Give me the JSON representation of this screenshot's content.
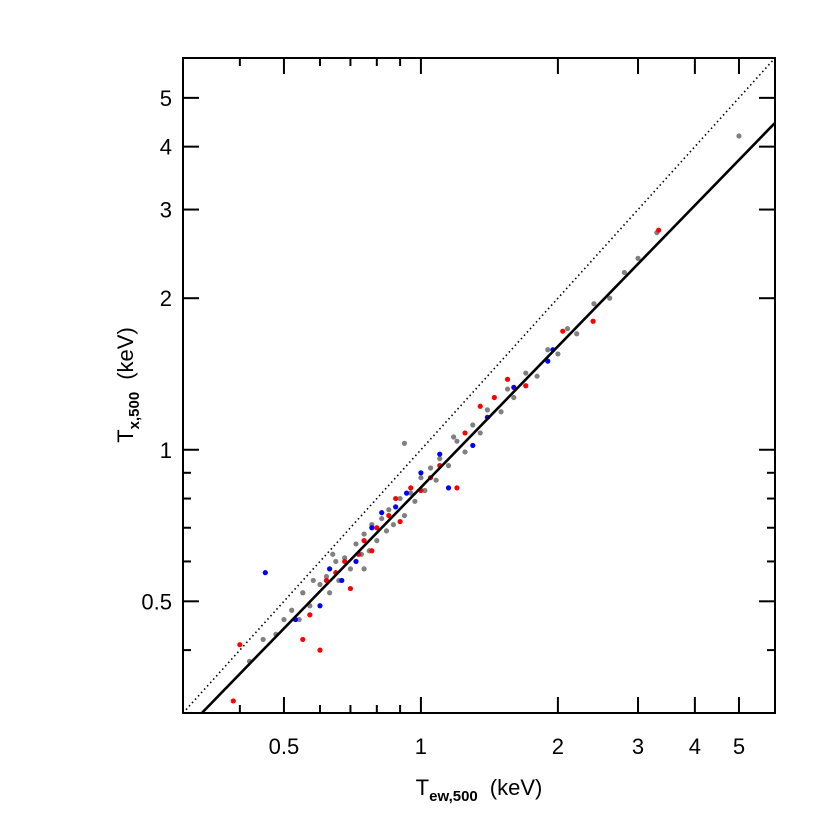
{
  "chart_data": {
    "type": "scatter",
    "xlabel": {
      "main": "T",
      "sub": "ew,500",
      "unit": "(keV)"
    },
    "ylabel": {
      "main": "T",
      "sub": "x,500",
      "unit": "(keV)"
    },
    "xscale": "log",
    "yscale": "log",
    "xlim": [
      0.3,
      6
    ],
    "ylim": [
      0.3,
      6
    ],
    "xticks": [
      0.5,
      1,
      2,
      3,
      4,
      5
    ],
    "yticks": [
      0.5,
      1,
      2,
      3,
      4,
      5
    ],
    "minor_ticks": [
      0.4,
      0.6,
      0.7,
      0.8,
      0.9
    ],
    "lines": [
      {
        "x": [
          0.3,
          6
        ],
        "y": [
          0.3,
          6
        ],
        "style": "dotted",
        "color": "#000000"
      },
      {
        "x": [
          0.33,
          6
        ],
        "y": [
          0.3,
          4.46
        ],
        "style": "solid",
        "color": "#000000"
      }
    ],
    "series": [
      {
        "color": "#808080",
        "x": [
          0.42,
          0.45,
          0.48,
          0.5,
          0.52,
          0.54,
          0.55,
          0.57,
          0.58,
          0.6,
          0.62,
          0.63,
          0.65,
          0.66,
          0.68,
          0.7,
          0.72,
          0.74,
          0.75,
          0.77,
          0.78,
          0.8,
          0.82,
          0.84,
          0.85,
          0.87,
          0.9,
          0.92,
          0.95,
          0.97,
          1.0,
          1.02,
          1.05,
          1.08,
          1.1,
          1.15,
          1.2,
          1.25,
          1.3,
          1.35,
          1.4,
          1.5,
          1.55,
          1.6,
          1.7,
          1.8,
          1.9,
          2.0,
          2.1,
          2.2,
          2.4,
          2.6,
          2.8,
          3.0,
          3.3,
          5.0,
          0.92,
          0.75,
          1.18,
          0.64
        ],
        "values": [
          0.38,
          0.42,
          0.43,
          0.46,
          0.48,
          0.46,
          0.52,
          0.49,
          0.55,
          0.54,
          0.56,
          0.52,
          0.6,
          0.55,
          0.61,
          0.58,
          0.65,
          0.62,
          0.68,
          0.63,
          0.71,
          0.66,
          0.73,
          0.69,
          0.76,
          0.71,
          0.8,
          1.03,
          0.82,
          0.79,
          0.88,
          0.83,
          0.92,
          0.87,
          0.96,
          0.93,
          1.04,
          0.99,
          1.12,
          1.08,
          1.2,
          1.19,
          1.32,
          1.27,
          1.42,
          1.4,
          1.58,
          1.55,
          1.74,
          1.7,
          1.95,
          2.0,
          2.25,
          2.4,
          2.7,
          4.2,
          0.74,
          0.58,
          1.06,
          0.62
        ]
      },
      {
        "color": "#ff0000",
        "x": [
          0.387,
          0.4,
          0.55,
          0.6,
          0.57,
          0.62,
          0.65,
          0.68,
          0.7,
          0.73,
          0.75,
          0.78,
          0.8,
          0.85,
          0.88,
          0.9,
          0.95,
          1.0,
          1.05,
          1.1,
          1.2,
          1.25,
          1.35,
          1.45,
          1.55,
          1.7,
          2.05,
          2.39,
          3.33
        ],
        "values": [
          0.317,
          0.41,
          0.42,
          0.4,
          0.47,
          0.55,
          0.57,
          0.6,
          0.53,
          0.62,
          0.66,
          0.63,
          0.7,
          0.74,
          0.8,
          0.72,
          0.84,
          0.83,
          0.88,
          0.93,
          0.84,
          1.08,
          1.22,
          1.27,
          1.38,
          1.34,
          1.72,
          1.8,
          2.73
        ]
      },
      {
        "color": "#0000ff",
        "x": [
          0.455,
          0.53,
          0.6,
          0.63,
          0.67,
          0.72,
          0.78,
          0.82,
          0.88,
          0.93,
          1.0,
          1.1,
          1.15,
          1.3,
          1.4,
          1.6,
          1.9,
          1.95
        ],
        "values": [
          0.57,
          0.46,
          0.49,
          0.58,
          0.55,
          0.6,
          0.7,
          0.75,
          0.77,
          0.82,
          0.9,
          0.98,
          0.84,
          1.02,
          1.16,
          1.33,
          1.5,
          1.58
        ]
      }
    ]
  }
}
